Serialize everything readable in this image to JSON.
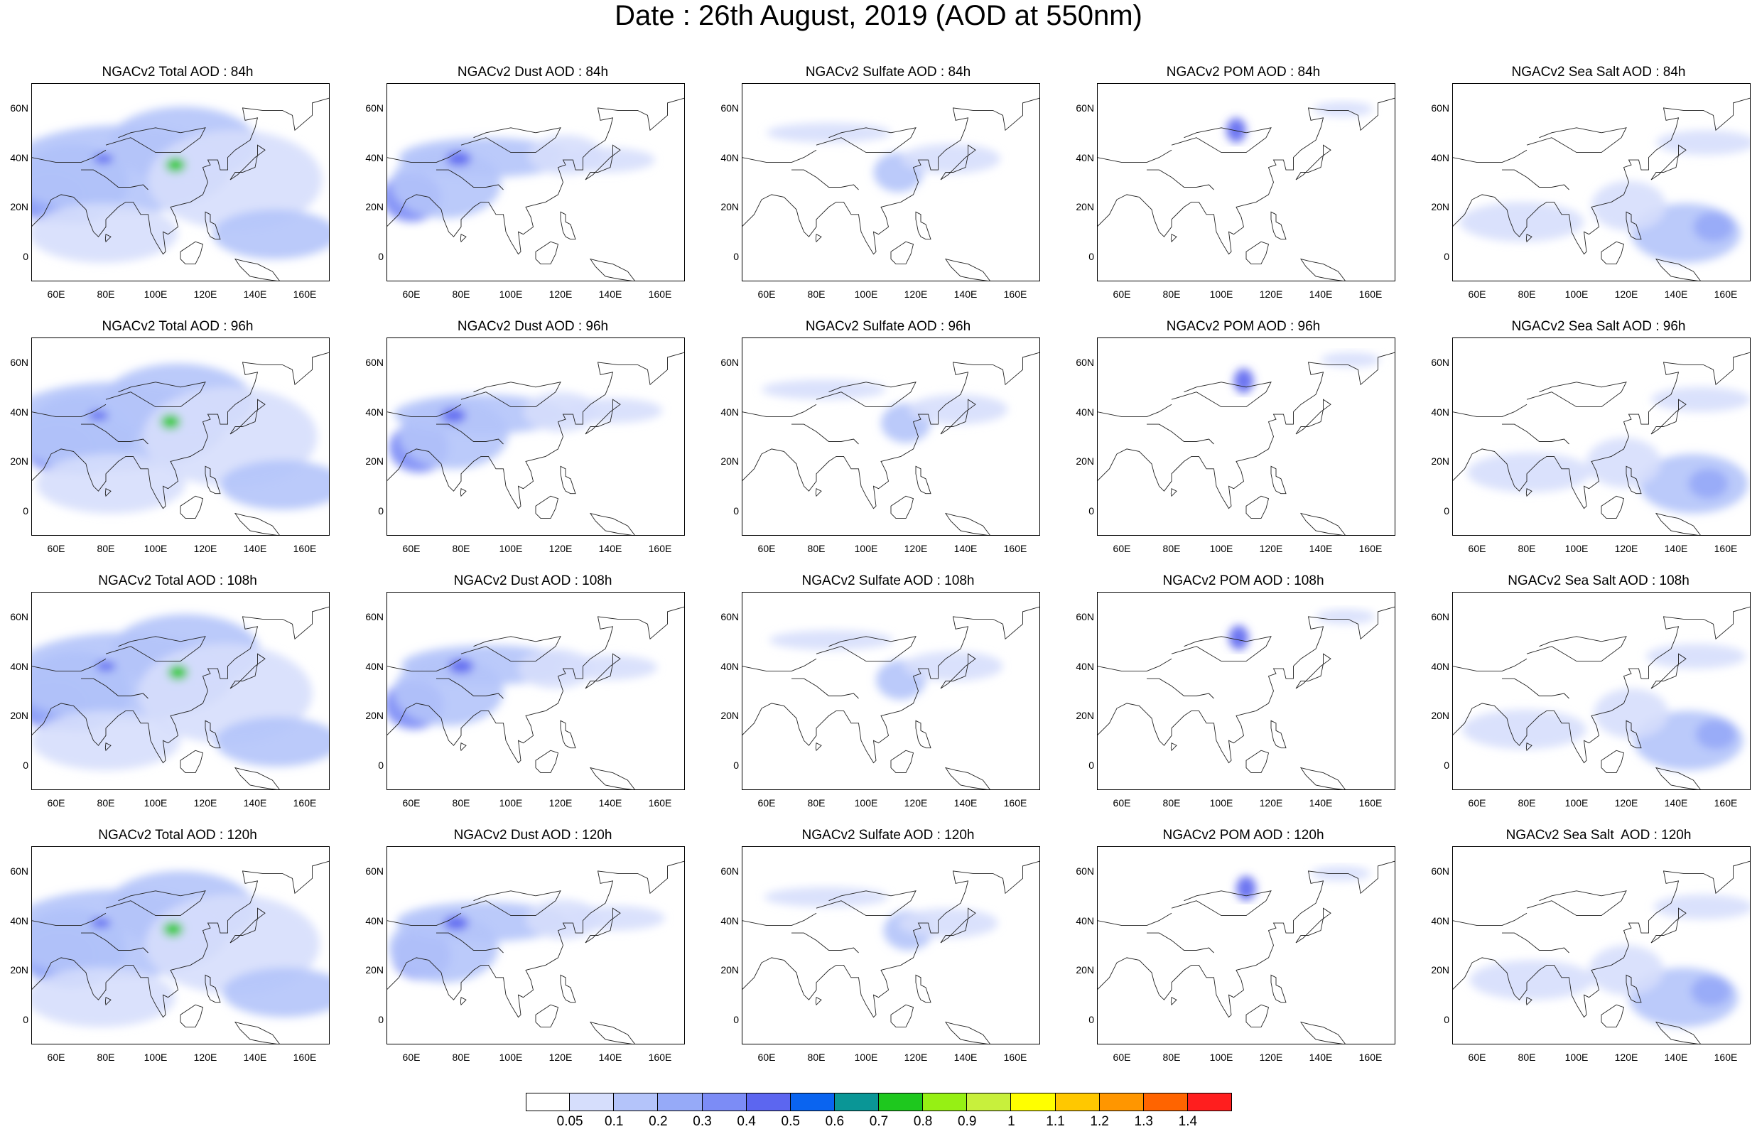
{
  "title": "Date : 26th August, 2019 (AOD at 550nm)",
  "axes": {
    "lat_ticks": [
      "60N",
      "40N",
      "20N",
      "0"
    ],
    "lon_ticks": [
      "60E",
      "80E",
      "100E",
      "120E",
      "140E",
      "160E"
    ]
  },
  "panels": [
    {
      "title": "NGACv2 Total AOD : 84h",
      "field": "total"
    },
    {
      "title": "NGACv2 Dust AOD : 84h",
      "field": "dust"
    },
    {
      "title": "NGACv2 Sulfate AOD : 84h",
      "field": "sulfate"
    },
    {
      "title": "NGACv2 POM AOD : 84h",
      "field": "pom"
    },
    {
      "title": "NGACv2 Sea Salt AOD : 84h",
      "field": "seasalt"
    },
    {
      "title": "NGACv2 Total AOD : 96h",
      "field": "total"
    },
    {
      "title": "NGACv2 Dust AOD : 96h",
      "field": "dust"
    },
    {
      "title": "NGACv2 Sulfate AOD : 96h",
      "field": "sulfate"
    },
    {
      "title": "NGACv2 POM AOD : 96h",
      "field": "pom"
    },
    {
      "title": "NGACv2 Sea Salt AOD : 96h",
      "field": "seasalt"
    },
    {
      "title": "NGACv2 Total AOD : 108h",
      "field": "total"
    },
    {
      "title": "NGACv2 Dust AOD : 108h",
      "field": "dust"
    },
    {
      "title": "NGACv2 Sulfate AOD : 108h",
      "field": "sulfate"
    },
    {
      "title": "NGACv2 POM AOD : 108h",
      "field": "pom"
    },
    {
      "title": "NGACv2 Sea Salt AOD : 108h",
      "field": "seasalt"
    },
    {
      "title": "NGACv2 Total AOD : 120h",
      "field": "total"
    },
    {
      "title": "NGACv2 Dust AOD : 120h",
      "field": "dust"
    },
    {
      "title": "NGACv2 Sulfate AOD : 120h",
      "field": "sulfate"
    },
    {
      "title": "NGACv2 POM AOD : 120h",
      "field": "pom"
    },
    {
      "title": "NGACv2 Sea Salt  AOD : 120h",
      "field": "seasalt"
    }
  ],
  "colorbar": {
    "labels": [
      "0.05",
      "0.1",
      "0.2",
      "0.3",
      "0.4",
      "0.5",
      "0.6",
      "0.7",
      "0.8",
      "0.9",
      "1",
      "1.1",
      "1.2",
      "1.3",
      "1.4"
    ],
    "colors": [
      "#ffffff",
      "#d6defc",
      "#b4c4fa",
      "#96aaf8",
      "#7c8cf6",
      "#5c66f0",
      "#0a64f0",
      "#0a9696",
      "#1ec81e",
      "#96f014",
      "#c8f03c",
      "#ffff00",
      "#ffc800",
      "#ff9600",
      "#ff6400",
      "#ff1e1e"
    ]
  },
  "fields": {
    "total": [
      {
        "lon": 60,
        "lat": 25,
        "rx": 14,
        "ry": 10,
        "color": "#7c8cf6"
      },
      {
        "lon": 68,
        "lat": 30,
        "rx": 22,
        "ry": 16,
        "color": "#96aaf8"
      },
      {
        "lon": 85,
        "lat": 35,
        "rx": 45,
        "ry": 18,
        "color": "#b4c4fa"
      },
      {
        "lon": 110,
        "lat": 45,
        "rx": 30,
        "ry": 15,
        "color": "#b4c4fa"
      },
      {
        "lon": 130,
        "lat": 30,
        "rx": 35,
        "ry": 20,
        "color": "#d6defc"
      },
      {
        "lon": 150,
        "lat": 10,
        "rx": 25,
        "ry": 10,
        "color": "#b4c4fa"
      },
      {
        "lon": 80,
        "lat": 10,
        "rx": 30,
        "ry": 12,
        "color": "#d6defc"
      },
      {
        "lon": 108,
        "lat": 37,
        "rx": 4,
        "ry": 3,
        "color": "#1ec81e"
      },
      {
        "lon": 78,
        "lat": 39,
        "rx": 4,
        "ry": 2,
        "color": "#5c66f0"
      }
    ],
    "dust": [
      {
        "lon": 62,
        "lat": 25,
        "rx": 12,
        "ry": 10,
        "color": "#7c8cf6"
      },
      {
        "lon": 75,
        "lat": 30,
        "rx": 22,
        "ry": 14,
        "color": "#b4c4fa"
      },
      {
        "lon": 90,
        "lat": 40,
        "rx": 35,
        "ry": 8,
        "color": "#b4c4fa"
      },
      {
        "lon": 78,
        "lat": 39,
        "rx": 5,
        "ry": 3,
        "color": "#5c66f0"
      },
      {
        "lon": 120,
        "lat": 40,
        "rx": 15,
        "ry": 8,
        "color": "#d6defc"
      },
      {
        "lon": 140,
        "lat": 40,
        "rx": 20,
        "ry": 5,
        "color": "#d6defc"
      }
    ],
    "sulfate": [
      {
        "lon": 115,
        "lat": 35,
        "rx": 10,
        "ry": 8,
        "color": "#b4c4fa"
      },
      {
        "lon": 135,
        "lat": 40,
        "rx": 20,
        "ry": 6,
        "color": "#d6defc"
      },
      {
        "lon": 85,
        "lat": 50,
        "rx": 25,
        "ry": 4,
        "color": "#d6defc"
      }
    ],
    "pom": [
      {
        "lon": 108,
        "lat": 52,
        "rx": 4,
        "ry": 5,
        "color": "#5c66f0"
      },
      {
        "lon": 150,
        "lat": 60,
        "rx": 12,
        "ry": 3,
        "color": "#d6defc"
      }
    ],
    "seasalt": [
      {
        "lon": 80,
        "lat": 15,
        "rx": 25,
        "ry": 8,
        "color": "#d6defc"
      },
      {
        "lon": 145,
        "lat": 10,
        "rx": 22,
        "ry": 12,
        "color": "#b4c4fa"
      },
      {
        "lon": 155,
        "lat": 12,
        "rx": 8,
        "ry": 6,
        "color": "#96aaf8"
      },
      {
        "lon": 120,
        "lat": 20,
        "rx": 15,
        "ry": 10,
        "color": "#d6defc"
      },
      {
        "lon": 150,
        "lat": 45,
        "rx": 20,
        "ry": 5,
        "color": "#d6defc"
      }
    ]
  }
}
